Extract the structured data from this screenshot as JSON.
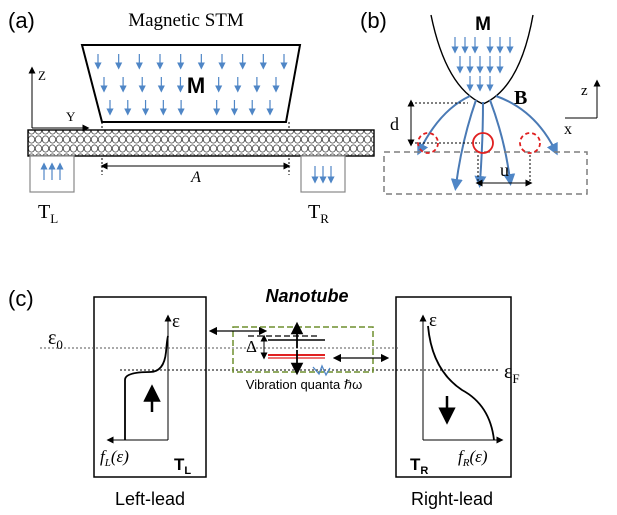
{
  "colors": {
    "arrow_blue": "#4f86c6",
    "line_blue": "#4a7ab5",
    "red": "#e02020",
    "dashed_gray": "#7f7f7f",
    "green_dashed": "#6f8f2f",
    "black": "#000000"
  },
  "panel_a": {
    "label": "(a)",
    "title": "Magnetic STM",
    "magnet_label": "M",
    "axis_z": "Z",
    "axis_y": "Y",
    "length_label": "A",
    "left_terminal": "T",
    "left_terminal_sub": "L",
    "right_terminal": "T",
    "right_terminal_sub": "R",
    "icons": [
      "down-arrow-icon",
      "up-arrow-icon"
    ]
  },
  "panel_b": {
    "label": "(b)",
    "magnet_label": "M",
    "field_label": "B",
    "distance_label": "d",
    "offset_label": "u",
    "axis_z": "z",
    "axis_x": "x"
  },
  "panel_c": {
    "label": "(c)",
    "title": "Nanotube",
    "epsilon_left": "ε",
    "epsilon_right": "ε",
    "epsilon_zero": "ε",
    "epsilon_zero_sub": "0",
    "epsilon_fermi": "ε",
    "epsilon_fermi_sub": "F",
    "delta": "Δ",
    "vibration_label": "Vibration quanta ℏω",
    "left_dist_f": "f",
    "left_dist_sub": "L",
    "left_dist_arg": "(ε)",
    "right_dist_f": "f",
    "right_dist_sub": "R",
    "right_dist_arg": "(ε)",
    "left_terminal": "T",
    "left_terminal_sub": "L",
    "right_terminal": "T",
    "right_terminal_sub": "R",
    "left_caption": "Left-lead",
    "right_caption": "Right-lead"
  }
}
